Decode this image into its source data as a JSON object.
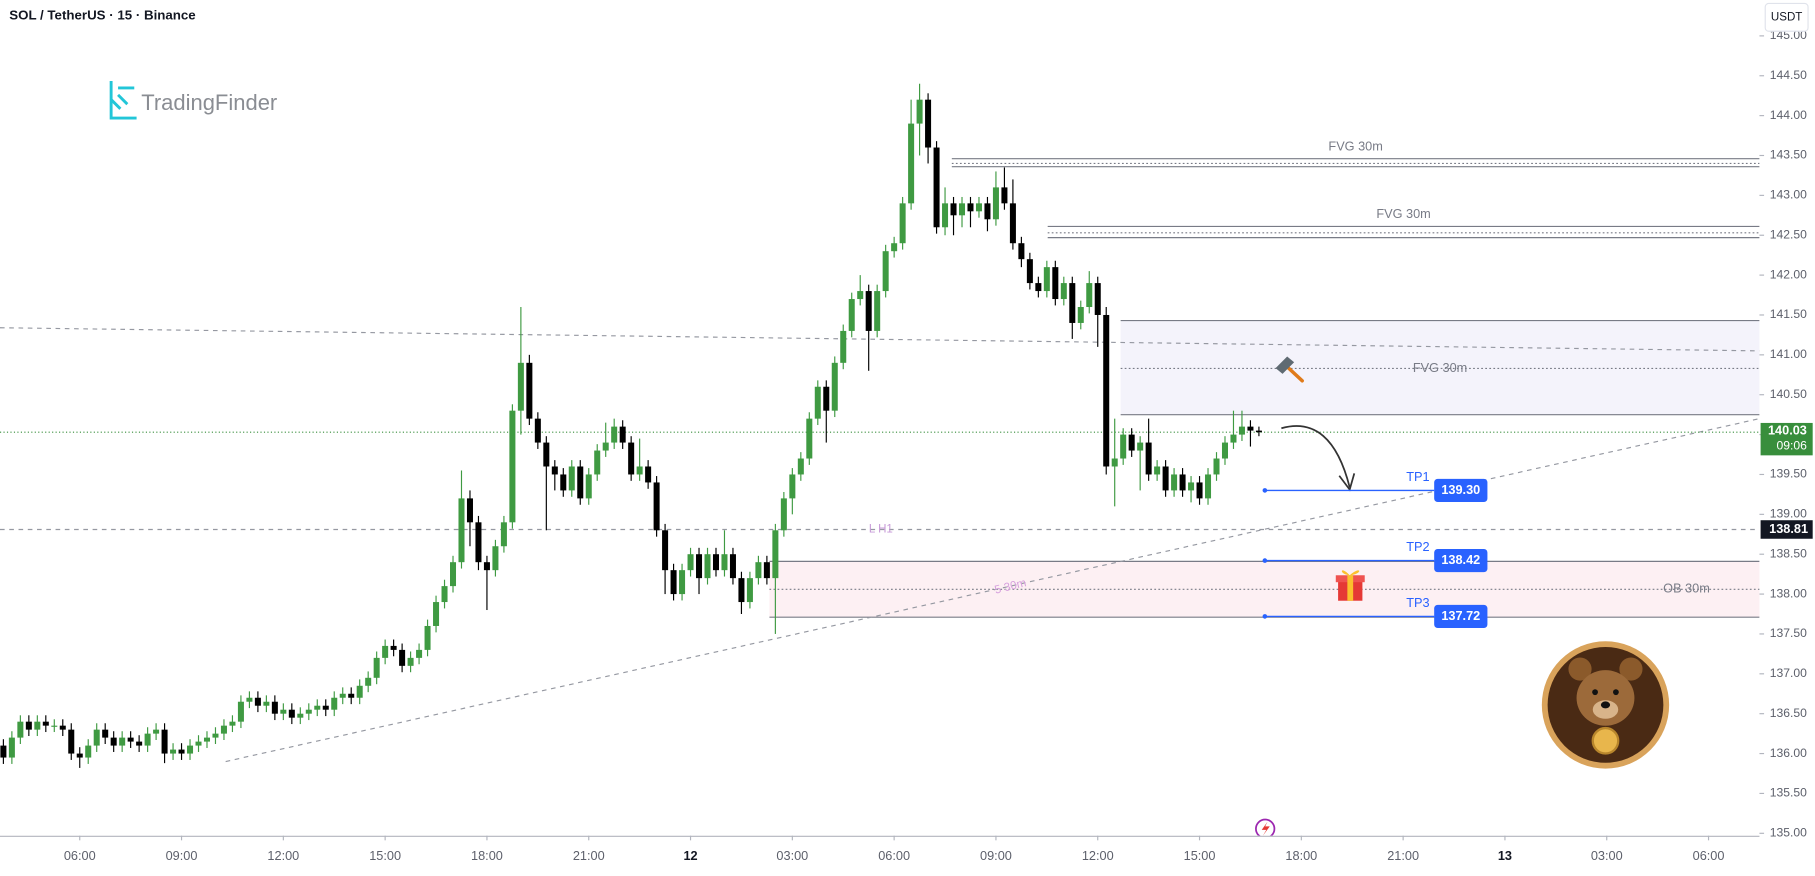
{
  "header": {
    "title": "SOL / TetherUS · 15 · Binance",
    "logo": "TradingFinder",
    "currency": "USDT"
  },
  "chart_data": {
    "type": "candlestick",
    "up_color": "#3f9a42",
    "down_color": "#000000",
    "candles": [
      [
        136.1,
        136.18,
        135.87,
        135.95
      ],
      [
        135.95,
        136.28,
        135.87,
        136.2
      ],
      [
        136.2,
        136.48,
        136.12,
        136.4
      ],
      [
        136.4,
        136.48,
        136.22,
        136.3
      ],
      [
        136.3,
        136.48,
        136.22,
        136.4
      ],
      [
        136.4,
        136.48,
        136.27,
        136.35
      ],
      [
        136.35,
        136.43,
        136.27,
        136.35
      ],
      [
        136.35,
        136.43,
        136.22,
        136.3
      ],
      [
        136.3,
        136.38,
        135.92,
        136.0
      ],
      [
        136.0,
        136.08,
        135.82,
        135.95
      ],
      [
        135.95,
        136.18,
        135.87,
        136.1
      ],
      [
        136.1,
        136.38,
        136.02,
        136.3
      ],
      [
        136.3,
        136.38,
        136.12,
        136.2
      ],
      [
        136.2,
        136.28,
        136.02,
        136.1
      ],
      [
        136.1,
        136.28,
        136.02,
        136.2
      ],
      [
        136.2,
        136.28,
        136.07,
        136.15
      ],
      [
        136.15,
        136.23,
        136.02,
        136.1
      ],
      [
        136.1,
        136.33,
        136.02,
        136.25
      ],
      [
        136.25,
        136.38,
        136.17,
        136.3
      ],
      [
        136.3,
        136.38,
        135.88,
        136.0
      ],
      [
        136.0,
        136.13,
        135.92,
        136.05
      ],
      [
        136.05,
        136.13,
        135.92,
        136.0
      ],
      [
        136.0,
        136.18,
        135.92,
        136.1
      ],
      [
        136.1,
        136.23,
        136.02,
        136.15
      ],
      [
        136.15,
        136.28,
        136.07,
        136.2
      ],
      [
        136.2,
        136.33,
        136.12,
        136.25
      ],
      [
        136.25,
        136.43,
        136.17,
        136.35
      ],
      [
        136.35,
        136.48,
        136.27,
        136.4
      ],
      [
        136.4,
        136.73,
        136.32,
        136.65
      ],
      [
        136.65,
        136.78,
        136.57,
        136.7
      ],
      [
        136.7,
        136.78,
        136.52,
        136.6
      ],
      [
        136.6,
        136.73,
        136.52,
        136.65
      ],
      [
        136.65,
        136.73,
        136.42,
        136.5
      ],
      [
        136.5,
        136.63,
        136.42,
        136.55
      ],
      [
        136.55,
        136.63,
        136.37,
        136.45
      ],
      [
        136.45,
        136.58,
        136.37,
        136.5
      ],
      [
        136.5,
        136.63,
        136.42,
        136.55
      ],
      [
        136.55,
        136.68,
        136.47,
        136.6
      ],
      [
        136.6,
        136.68,
        136.47,
        136.55
      ],
      [
        136.55,
        136.78,
        136.47,
        136.7
      ],
      [
        136.7,
        136.83,
        136.62,
        136.75
      ],
      [
        136.75,
        136.83,
        136.62,
        136.7
      ],
      [
        136.7,
        136.93,
        136.62,
        136.85
      ],
      [
        136.85,
        137.03,
        136.77,
        136.95
      ],
      [
        136.95,
        137.28,
        136.87,
        137.2
      ],
      [
        137.2,
        137.43,
        137.12,
        137.35
      ],
      [
        137.35,
        137.43,
        137.22,
        137.3
      ],
      [
        137.3,
        137.38,
        137.02,
        137.1
      ],
      [
        137.1,
        137.28,
        137.02,
        137.2
      ],
      [
        137.2,
        137.38,
        137.12,
        137.3
      ],
      [
        137.3,
        137.68,
        137.22,
        137.6
      ],
      [
        137.6,
        137.98,
        137.52,
        137.9
      ],
      [
        137.9,
        138.18,
        137.82,
        138.1
      ],
      [
        138.1,
        138.48,
        138.02,
        138.4
      ],
      [
        138.4,
        139.55,
        138.32,
        139.2
      ],
      [
        139.2,
        139.3,
        138.6,
        138.9
      ],
      [
        138.9,
        138.98,
        138.3,
        138.4
      ],
      [
        138.4,
        138.48,
        137.8,
        138.3
      ],
      [
        138.3,
        138.68,
        138.22,
        138.6
      ],
      [
        138.6,
        138.98,
        138.52,
        138.9
      ],
      [
        138.9,
        140.38,
        138.82,
        140.3
      ],
      [
        140.3,
        141.6,
        140.0,
        140.9
      ],
      [
        140.9,
        141.0,
        140.12,
        140.2
      ],
      [
        140.2,
        140.28,
        139.82,
        139.9
      ],
      [
        139.9,
        139.98,
        138.8,
        139.6
      ],
      [
        139.6,
        139.68,
        139.3,
        139.5
      ],
      [
        139.5,
        139.58,
        139.22,
        139.3
      ],
      [
        139.3,
        139.68,
        139.22,
        139.6
      ],
      [
        139.6,
        139.68,
        139.12,
        139.2
      ],
      [
        139.2,
        139.58,
        139.12,
        139.5
      ],
      [
        139.5,
        139.88,
        139.42,
        139.8
      ],
      [
        139.8,
        140.15,
        139.72,
        139.9
      ],
      [
        139.9,
        140.2,
        139.82,
        140.1
      ],
      [
        140.1,
        140.18,
        139.82,
        139.9
      ],
      [
        139.9,
        139.98,
        139.42,
        139.5
      ],
      [
        139.5,
        139.95,
        139.42,
        139.6
      ],
      [
        139.6,
        139.68,
        139.32,
        139.4
      ],
      [
        139.4,
        139.48,
        138.72,
        138.8
      ],
      [
        138.8,
        138.88,
        138.0,
        138.3
      ],
      [
        138.3,
        138.38,
        137.92,
        138.0
      ],
      [
        138.0,
        138.38,
        137.92,
        138.3
      ],
      [
        138.3,
        138.58,
        138.22,
        138.5
      ],
      [
        138.5,
        138.58,
        138.0,
        138.2
      ],
      [
        138.2,
        138.58,
        138.12,
        138.5
      ],
      [
        138.5,
        138.58,
        138.22,
        138.3
      ],
      [
        138.3,
        138.8,
        138.22,
        138.5
      ],
      [
        138.5,
        138.58,
        138.12,
        138.2
      ],
      [
        138.2,
        138.28,
        137.75,
        137.9
      ],
      [
        137.9,
        138.28,
        137.82,
        138.2
      ],
      [
        138.2,
        138.48,
        138.12,
        138.4
      ],
      [
        138.4,
        138.48,
        138.12,
        138.2
      ],
      [
        138.2,
        138.88,
        137.5,
        138.8
      ],
      [
        138.8,
        139.28,
        138.72,
        139.2
      ],
      [
        139.2,
        139.58,
        139.0,
        139.5
      ],
      [
        139.5,
        139.78,
        139.42,
        139.7
      ],
      [
        139.7,
        140.28,
        139.62,
        140.2
      ],
      [
        140.2,
        140.68,
        140.12,
        140.6
      ],
      [
        140.6,
        140.68,
        139.9,
        140.3
      ],
      [
        140.3,
        140.98,
        140.22,
        140.9
      ],
      [
        140.9,
        141.38,
        140.82,
        141.3
      ],
      [
        141.3,
        141.78,
        141.22,
        141.7
      ],
      [
        141.7,
        142.0,
        141.62,
        141.8
      ],
      [
        141.8,
        141.88,
        140.8,
        141.3
      ],
      [
        141.3,
        141.88,
        141.22,
        141.8
      ],
      [
        141.8,
        142.38,
        141.72,
        142.3
      ],
      [
        142.3,
        142.48,
        142.22,
        142.4
      ],
      [
        142.4,
        142.98,
        142.32,
        142.9
      ],
      [
        142.9,
        144.2,
        142.82,
        143.9
      ],
      [
        143.9,
        144.4,
        143.5,
        144.2
      ],
      [
        144.2,
        144.28,
        143.4,
        143.6
      ],
      [
        143.6,
        143.68,
        142.52,
        142.6
      ],
      [
        142.6,
        143.1,
        142.5,
        142.9
      ],
      [
        142.9,
        142.98,
        142.5,
        142.75
      ],
      [
        142.75,
        142.98,
        142.6,
        142.9
      ],
      [
        142.9,
        142.98,
        142.6,
        142.8
      ],
      [
        142.8,
        142.98,
        142.72,
        142.9
      ],
      [
        142.9,
        142.98,
        142.55,
        142.7
      ],
      [
        142.7,
        143.3,
        142.62,
        143.1
      ],
      [
        143.1,
        143.35,
        142.82,
        142.9
      ],
      [
        142.9,
        143.2,
        142.32,
        142.4
      ],
      [
        142.4,
        142.48,
        142.1,
        142.2
      ],
      [
        142.2,
        142.28,
        141.82,
        141.9
      ],
      [
        141.9,
        141.98,
        141.72,
        141.8
      ],
      [
        141.8,
        142.18,
        141.72,
        142.1
      ],
      [
        142.1,
        142.18,
        141.62,
        141.7
      ],
      [
        141.7,
        141.98,
        141.62,
        141.9
      ],
      [
        141.9,
        141.98,
        141.2,
        141.4
      ],
      [
        141.4,
        141.68,
        141.32,
        141.6
      ],
      [
        141.6,
        142.05,
        141.52,
        141.9
      ],
      [
        141.9,
        141.98,
        141.1,
        141.5
      ],
      [
        141.5,
        141.6,
        139.5,
        139.6
      ],
      [
        139.6,
        140.2,
        139.1,
        139.7
      ],
      [
        139.7,
        140.08,
        139.62,
        140.0
      ],
      [
        140.0,
        140.08,
        139.72,
        139.8
      ],
      [
        139.8,
        139.98,
        139.3,
        139.9
      ],
      [
        139.9,
        140.2,
        139.42,
        139.5
      ],
      [
        139.5,
        139.68,
        139.42,
        139.6
      ],
      [
        139.6,
        139.68,
        139.22,
        139.3
      ],
      [
        139.3,
        139.58,
        139.22,
        139.5
      ],
      [
        139.5,
        139.58,
        139.22,
        139.3
      ],
      [
        139.3,
        139.48,
        139.15,
        139.4
      ],
      [
        139.4,
        139.48,
        139.12,
        139.2
      ],
      [
        139.2,
        139.58,
        139.12,
        139.5
      ],
      [
        139.5,
        139.78,
        139.42,
        139.7
      ],
      [
        139.7,
        139.98,
        139.62,
        139.9
      ],
      [
        139.9,
        140.3,
        139.82,
        140.0
      ],
      [
        140.0,
        140.3,
        139.92,
        140.1
      ],
      [
        140.1,
        140.18,
        139.85,
        140.05
      ],
      [
        140.05,
        140.1,
        139.98,
        140.03
      ]
    ],
    "xlim": [
      -0.4,
      207
    ],
    "xticks": [
      {
        "value": 9,
        "label": "06:00"
      },
      {
        "value": 21,
        "label": "09:00"
      },
      {
        "value": 33,
        "label": "12:00"
      },
      {
        "value": 45,
        "label": "15:00"
      },
      {
        "value": 57,
        "label": "18:00"
      },
      {
        "value": 69,
        "label": "21:00"
      },
      {
        "value": 81,
        "label": "12"
      },
      {
        "value": 93,
        "label": "03:00"
      },
      {
        "value": 105,
        "label": "06:00"
      },
      {
        "value": 117,
        "label": "09:00"
      },
      {
        "value": 129,
        "label": "12:00"
      },
      {
        "value": 141,
        "label": "15:00"
      },
      {
        "value": 153,
        "label": "18:00"
      },
      {
        "value": 165,
        "label": "21:00"
      },
      {
        "value": 177,
        "label": "13"
      },
      {
        "value": 189,
        "label": "03:00"
      },
      {
        "value": 201,
        "label": "06:00"
      }
    ],
    "ylim": [
      134.97,
      145.45
    ],
    "yticks": [
      {
        "value": 135,
        "label": "135.00"
      },
      {
        "value": 135.5,
        "label": "135.50"
      },
      {
        "value": 136,
        "label": "136.00"
      },
      {
        "value": 136.5,
        "label": "136.50"
      },
      {
        "value": 137,
        "label": "137.00"
      },
      {
        "value": 137.5,
        "label": "137.50"
      },
      {
        "value": 138,
        "label": "138.00"
      },
      {
        "value": 138.5,
        "label": "138.50"
      },
      {
        "value": 139,
        "label": "139.00"
      },
      {
        "value": 139.5,
        "label": "139.50"
      },
      {
        "value": 140,
        "label": "140.00"
      },
      {
        "value": 140.5,
        "label": "140.50"
      },
      {
        "value": 141,
        "label": "141.00"
      },
      {
        "value": 141.5,
        "label": "141.50"
      },
      {
        "value": 142,
        "label": "142.00"
      },
      {
        "value": 142.5,
        "label": "142.50"
      },
      {
        "value": 143,
        "label": "143.00"
      },
      {
        "value": 143.5,
        "label": "143.50"
      },
      {
        "value": 144,
        "label": "144.00"
      },
      {
        "value": 144.5,
        "label": "144.50"
      },
      {
        "value": 145,
        "label": "145.00"
      }
    ],
    "current_price": {
      "value": 140.03,
      "label": "140.03",
      "color": "#388e3c"
    },
    "countdown": "09:06",
    "levels": [
      {
        "name": "L H1",
        "value": 138.81,
        "label": "138.81"
      }
    ],
    "zones": [
      {
        "label": "FVG 30m",
        "start": 111.8,
        "top": 143.46,
        "mid": 143.4,
        "bottom": 143.36,
        "fill": "#ffffff"
      },
      {
        "label": "FVG 30m",
        "start": 123.1,
        "top": 142.61,
        "mid": 142.53,
        "bottom": 142.47,
        "fill": "#ffffff"
      },
      {
        "label": "FVG 30m",
        "start": 131.7,
        "top": 141.43,
        "mid": 140.83,
        "bottom": 140.25,
        "fill": "#f4f3fb"
      },
      {
        "label": "OB 30m",
        "start": 90.3,
        "top": 138.41,
        "mid": 138.06,
        "bottom": 137.71,
        "fill": "#fdf0f3"
      }
    ],
    "trendlines": [
      {
        "x": [
          -0.4,
          207
        ],
        "y": [
          141.34,
          141.05
        ]
      },
      {
        "x": [
          26.2,
          207
        ],
        "y": [
          135.9,
          140.2
        ]
      }
    ],
    "targets": [
      {
        "name": "TP1",
        "start": 148.7,
        "value": 139.3,
        "label": "139.30"
      },
      {
        "name": "TP2",
        "start": 148.7,
        "value": 138.42,
        "label": "138.42"
      },
      {
        "name": "TP3",
        "start": 148.7,
        "value": 137.72,
        "label": "137.72"
      }
    ],
    "target_color": "#2962ff",
    "annotation": "5 30m"
  }
}
